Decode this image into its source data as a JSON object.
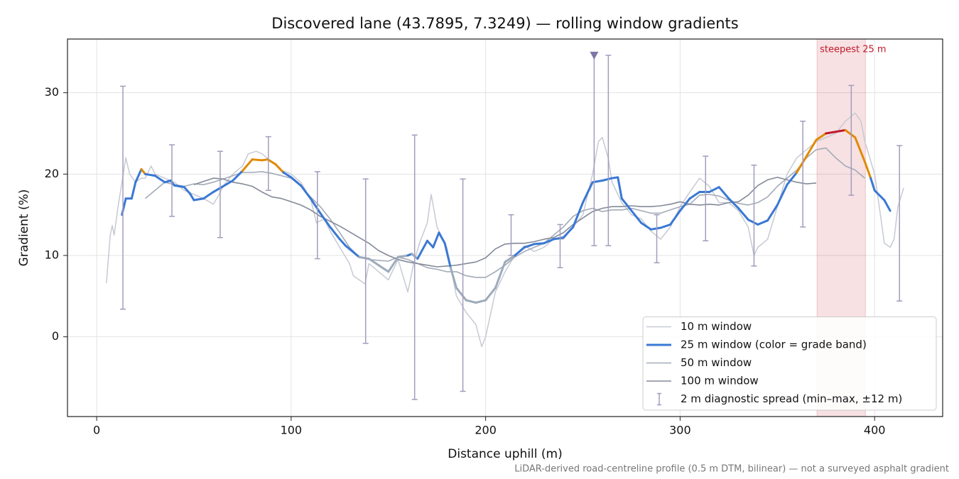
{
  "chart_data": {
    "type": "line",
    "title": "Discovered lane (43.7895, 7.3249) — rolling window gradients",
    "x_label": "Distance uphill (m)",
    "y_label": "Gradient (%)",
    "footnote": "LiDAR-derived road-centreline profile (0.5 m DTM, bilinear) — not a surveyed asphalt gradient",
    "xlim": [
      -15,
      435
    ],
    "ylim": [
      -9.8,
      36.6
    ],
    "xticks": [
      0,
      100,
      200,
      300,
      400
    ],
    "yticks": [
      0,
      10,
      20,
      30
    ],
    "grid": true,
    "legend": "lower right",
    "highlight": {
      "x": [
        370.4,
        395.3
      ],
      "label": "steepest 25 m",
      "color": "#c0182a"
    },
    "series": [
      {
        "name": "10 m window",
        "color": "#c6cad3",
        "width": 1.5,
        "x": [
          5,
          7,
          8,
          9,
          11,
          13,
          15,
          17,
          20,
          23,
          25,
          28,
          30,
          35,
          40,
          45,
          50,
          55,
          60,
          63,
          65,
          70,
          75,
          78,
          82,
          85,
          90,
          95,
          100,
          105,
          110,
          113,
          117,
          120,
          125,
          130,
          132,
          135,
          138,
          140,
          145,
          150,
          155,
          160,
          163,
          166,
          170,
          172,
          175,
          178,
          180,
          185,
          190,
          195,
          198,
          200,
          205,
          210,
          215,
          220,
          225,
          230,
          235,
          240,
          245,
          250,
          255,
          258,
          260,
          263,
          265,
          270,
          275,
          280,
          285,
          290,
          295,
          300,
          305,
          310,
          315,
          320,
          325,
          330,
          335,
          338,
          340,
          345,
          350,
          355,
          360,
          365,
          370,
          375,
          380,
          385,
          390,
          393,
          395,
          400,
          403,
          405,
          408,
          410,
          412,
          415
        ],
        "values": [
          6.6,
          12.5,
          13.7,
          12.5,
          16,
          19,
          22,
          20,
          19,
          19.5,
          19.5,
          21,
          20,
          19.5,
          19,
          18,
          17.5,
          17,
          16.3,
          17.5,
          18.5,
          20,
          21,
          22.5,
          22.8,
          22.5,
          21.5,
          20.5,
          20,
          19,
          17,
          14,
          14.5,
          13,
          11,
          9,
          7.5,
          7,
          6.5,
          9,
          8,
          7,
          9.5,
          5.5,
          9,
          11.5,
          14,
          17.5,
          13.5,
          12,
          11,
          5,
          3,
          1.5,
          -1.2,
          0,
          5.5,
          8,
          10,
          11.2,
          10.5,
          11,
          12,
          12,
          13.5,
          15,
          20,
          24,
          24.5,
          22,
          19,
          16.5,
          15,
          14.5,
          13,
          12,
          13.5,
          16,
          17.8,
          19.5,
          18.5,
          16.5,
          16.5,
          15.5,
          13.5,
          10,
          11,
          12,
          16,
          20,
          22,
          23,
          24,
          24.5,
          25,
          26.5,
          27.5,
          26.5,
          24,
          20,
          15,
          11.5,
          11,
          12,
          16,
          18.3
        ]
      },
      {
        "name": "50 m window",
        "color": "#a3abb8",
        "width": 1.6,
        "x": [
          25,
          30,
          35,
          40,
          45,
          50,
          55,
          60,
          65,
          70,
          75,
          80,
          85,
          90,
          95,
          100,
          105,
          110,
          115,
          120,
          125,
          130,
          135,
          140,
          145,
          150,
          155,
          160,
          165,
          170,
          175,
          180,
          185,
          190,
          195,
          200,
          205,
          210,
          215,
          220,
          225,
          230,
          235,
          240,
          245,
          250,
          255,
          260,
          265,
          270,
          275,
          280,
          285,
          290,
          295,
          300,
          305,
          310,
          315,
          320,
          325,
          330,
          335,
          340,
          345,
          350,
          355,
          360,
          365,
          370,
          375,
          380,
          385,
          390,
          395
        ],
        "values": [
          17,
          18,
          19,
          18.7,
          18.5,
          18.8,
          18.7,
          19,
          19.4,
          19.8,
          20.2,
          20.2,
          20.3,
          20.1,
          19.8,
          19.5,
          18.5,
          17.2,
          16,
          14.5,
          12.8,
          11,
          9.8,
          9.5,
          9.4,
          9.3,
          9.8,
          9.5,
          9,
          8.5,
          8.3,
          8,
          8,
          7.5,
          7.3,
          7.3,
          8,
          8.8,
          9.8,
          10.5,
          11,
          11.5,
          12.5,
          13.5,
          14.8,
          15.5,
          15.8,
          15.4,
          15.6,
          15.6,
          15.8,
          15.5,
          15.2,
          15.2,
          15.6,
          16,
          16.3,
          17.4,
          17.5,
          17.3,
          16.8,
          16.4,
          16.2,
          16.5,
          17.2,
          18.5,
          19.5,
          20.5,
          22,
          23,
          23.2,
          22,
          21,
          20.5,
          19.5
        ]
      },
      {
        "name": "100 m window",
        "color": "#838a98",
        "width": 1.6,
        "x": [
          50,
          55,
          60,
          65,
          70,
          75,
          80,
          85,
          90,
          95,
          100,
          105,
          110,
          115,
          120,
          125,
          130,
          135,
          140,
          145,
          150,
          155,
          160,
          165,
          170,
          175,
          180,
          185,
          190,
          195,
          200,
          205,
          210,
          215,
          220,
          225,
          230,
          235,
          240,
          245,
          250,
          255,
          260,
          265,
          270,
          275,
          280,
          285,
          290,
          295,
          300,
          305,
          310,
          315,
          320,
          325,
          330,
          335,
          340,
          345,
          350,
          355,
          360,
          365,
          370
        ],
        "values": [
          18.7,
          19.1,
          19.5,
          19.4,
          19,
          18.8,
          18.5,
          17.8,
          17.2,
          17,
          16.6,
          16.2,
          15.6,
          14.8,
          14.2,
          13.6,
          12.9,
          12.2,
          11.5,
          10.6,
          10,
          9.5,
          9.2,
          9,
          8.8,
          8.6,
          8.7,
          8.8,
          9,
          9.2,
          9.7,
          10.8,
          11.4,
          11.5,
          11.5,
          11.7,
          12,
          12.2,
          12.8,
          13.8,
          14.6,
          15.4,
          15.8,
          16,
          16,
          16.1,
          16,
          16,
          16.1,
          16.3,
          16.6,
          16.3,
          16.2,
          16.3,
          16.2,
          16.5,
          16.6,
          17.4,
          18.6,
          19.3,
          19.6,
          19.3,
          19,
          18.8,
          18.9
        ]
      },
      {
        "name": "25 m window (color = grade band)",
        "color": "#3a78d4",
        "width": 3,
        "grade_bands": {
          "breaks": [
            10,
            20,
            25
          ],
          "colors": [
            "#9dabbb",
            "#3a78d4",
            "#e08a00",
            "#c0182a"
          ]
        },
        "x": [
          13,
          15,
          18,
          20,
          23,
          25,
          30,
          35,
          38,
          40,
          45,
          48,
          50,
          55,
          60,
          65,
          70,
          75,
          80,
          85,
          88,
          92,
          96,
          100,
          105,
          110,
          115,
          120,
          125,
          128,
          130,
          135,
          140,
          145,
          150,
          155,
          160,
          162,
          165,
          170,
          173,
          176,
          179,
          182,
          185,
          190,
          195,
          200,
          205,
          210,
          215,
          220,
          225,
          230,
          235,
          240,
          245,
          250,
          255,
          260,
          265,
          268,
          270,
          275,
          280,
          285,
          290,
          295,
          300,
          305,
          310,
          315,
          320,
          325,
          330,
          335,
          340,
          345,
          350,
          355,
          360,
          365,
          370,
          375,
          380,
          385,
          390,
          395,
          398,
          400,
          405,
          408
        ],
        "values": [
          15,
          17,
          17,
          19,
          20.6,
          20,
          19.8,
          19,
          19.2,
          18.6,
          18.4,
          17.6,
          16.8,
          17,
          17.8,
          18.5,
          19.2,
          20.4,
          21.8,
          21.7,
          21.8,
          21.2,
          20.2,
          19.6,
          18.6,
          17,
          15.2,
          13.5,
          12,
          11.2,
          10.8,
          9.8,
          9.6,
          8.8,
          8,
          9.8,
          10,
          10.2,
          9.6,
          11.8,
          11,
          12.8,
          11.5,
          8.5,
          6,
          4.5,
          4.2,
          4.5,
          6,
          9.2,
          10,
          11,
          11.4,
          11.5,
          12,
          12.2,
          13.5,
          16.5,
          19,
          19.2,
          19.5,
          19.6,
          17,
          15.5,
          14,
          13.2,
          13.4,
          13.8,
          15.5,
          17,
          17.8,
          17.8,
          18.4,
          17,
          15.8,
          14.4,
          13.8,
          14.3,
          16.2,
          18.7,
          20.2,
          22.2,
          24.2,
          25,
          25.2,
          25.4,
          24.5,
          21.5,
          19.5,
          18,
          16.8,
          15.5
        ]
      }
    ],
    "error_bars": {
      "name": "2 m diagnostic spread (min–max, ±12 m)",
      "color": "#a29dbd",
      "x": [
        13.5,
        38.7,
        63.5,
        88.3,
        113.5,
        138.3,
        163.5,
        188.3,
        213.1,
        238.3,
        255.8,
        263.1,
        288,
        313.1,
        338,
        363.1,
        388,
        412.8
      ],
      "low": [
        3.4,
        14.8,
        12.2,
        18,
        9.6,
        -0.8,
        -7.7,
        -6.7,
        10,
        8.5,
        11.2,
        11.2,
        9.1,
        11.8,
        8.7,
        13.5,
        17.4,
        4.4
      ],
      "high": [
        30.8,
        23.6,
        22.8,
        24.6,
        20.3,
        19.4,
        24.8,
        19.4,
        15,
        13.8,
        34.8,
        34.6,
        15,
        22.2,
        21.1,
        26.5,
        30.9,
        23.5
      ]
    },
    "markers": [
      {
        "x": 255.8,
        "y": 34.6,
        "shape": "triangle-down",
        "color": "#7f76a6"
      }
    ]
  }
}
